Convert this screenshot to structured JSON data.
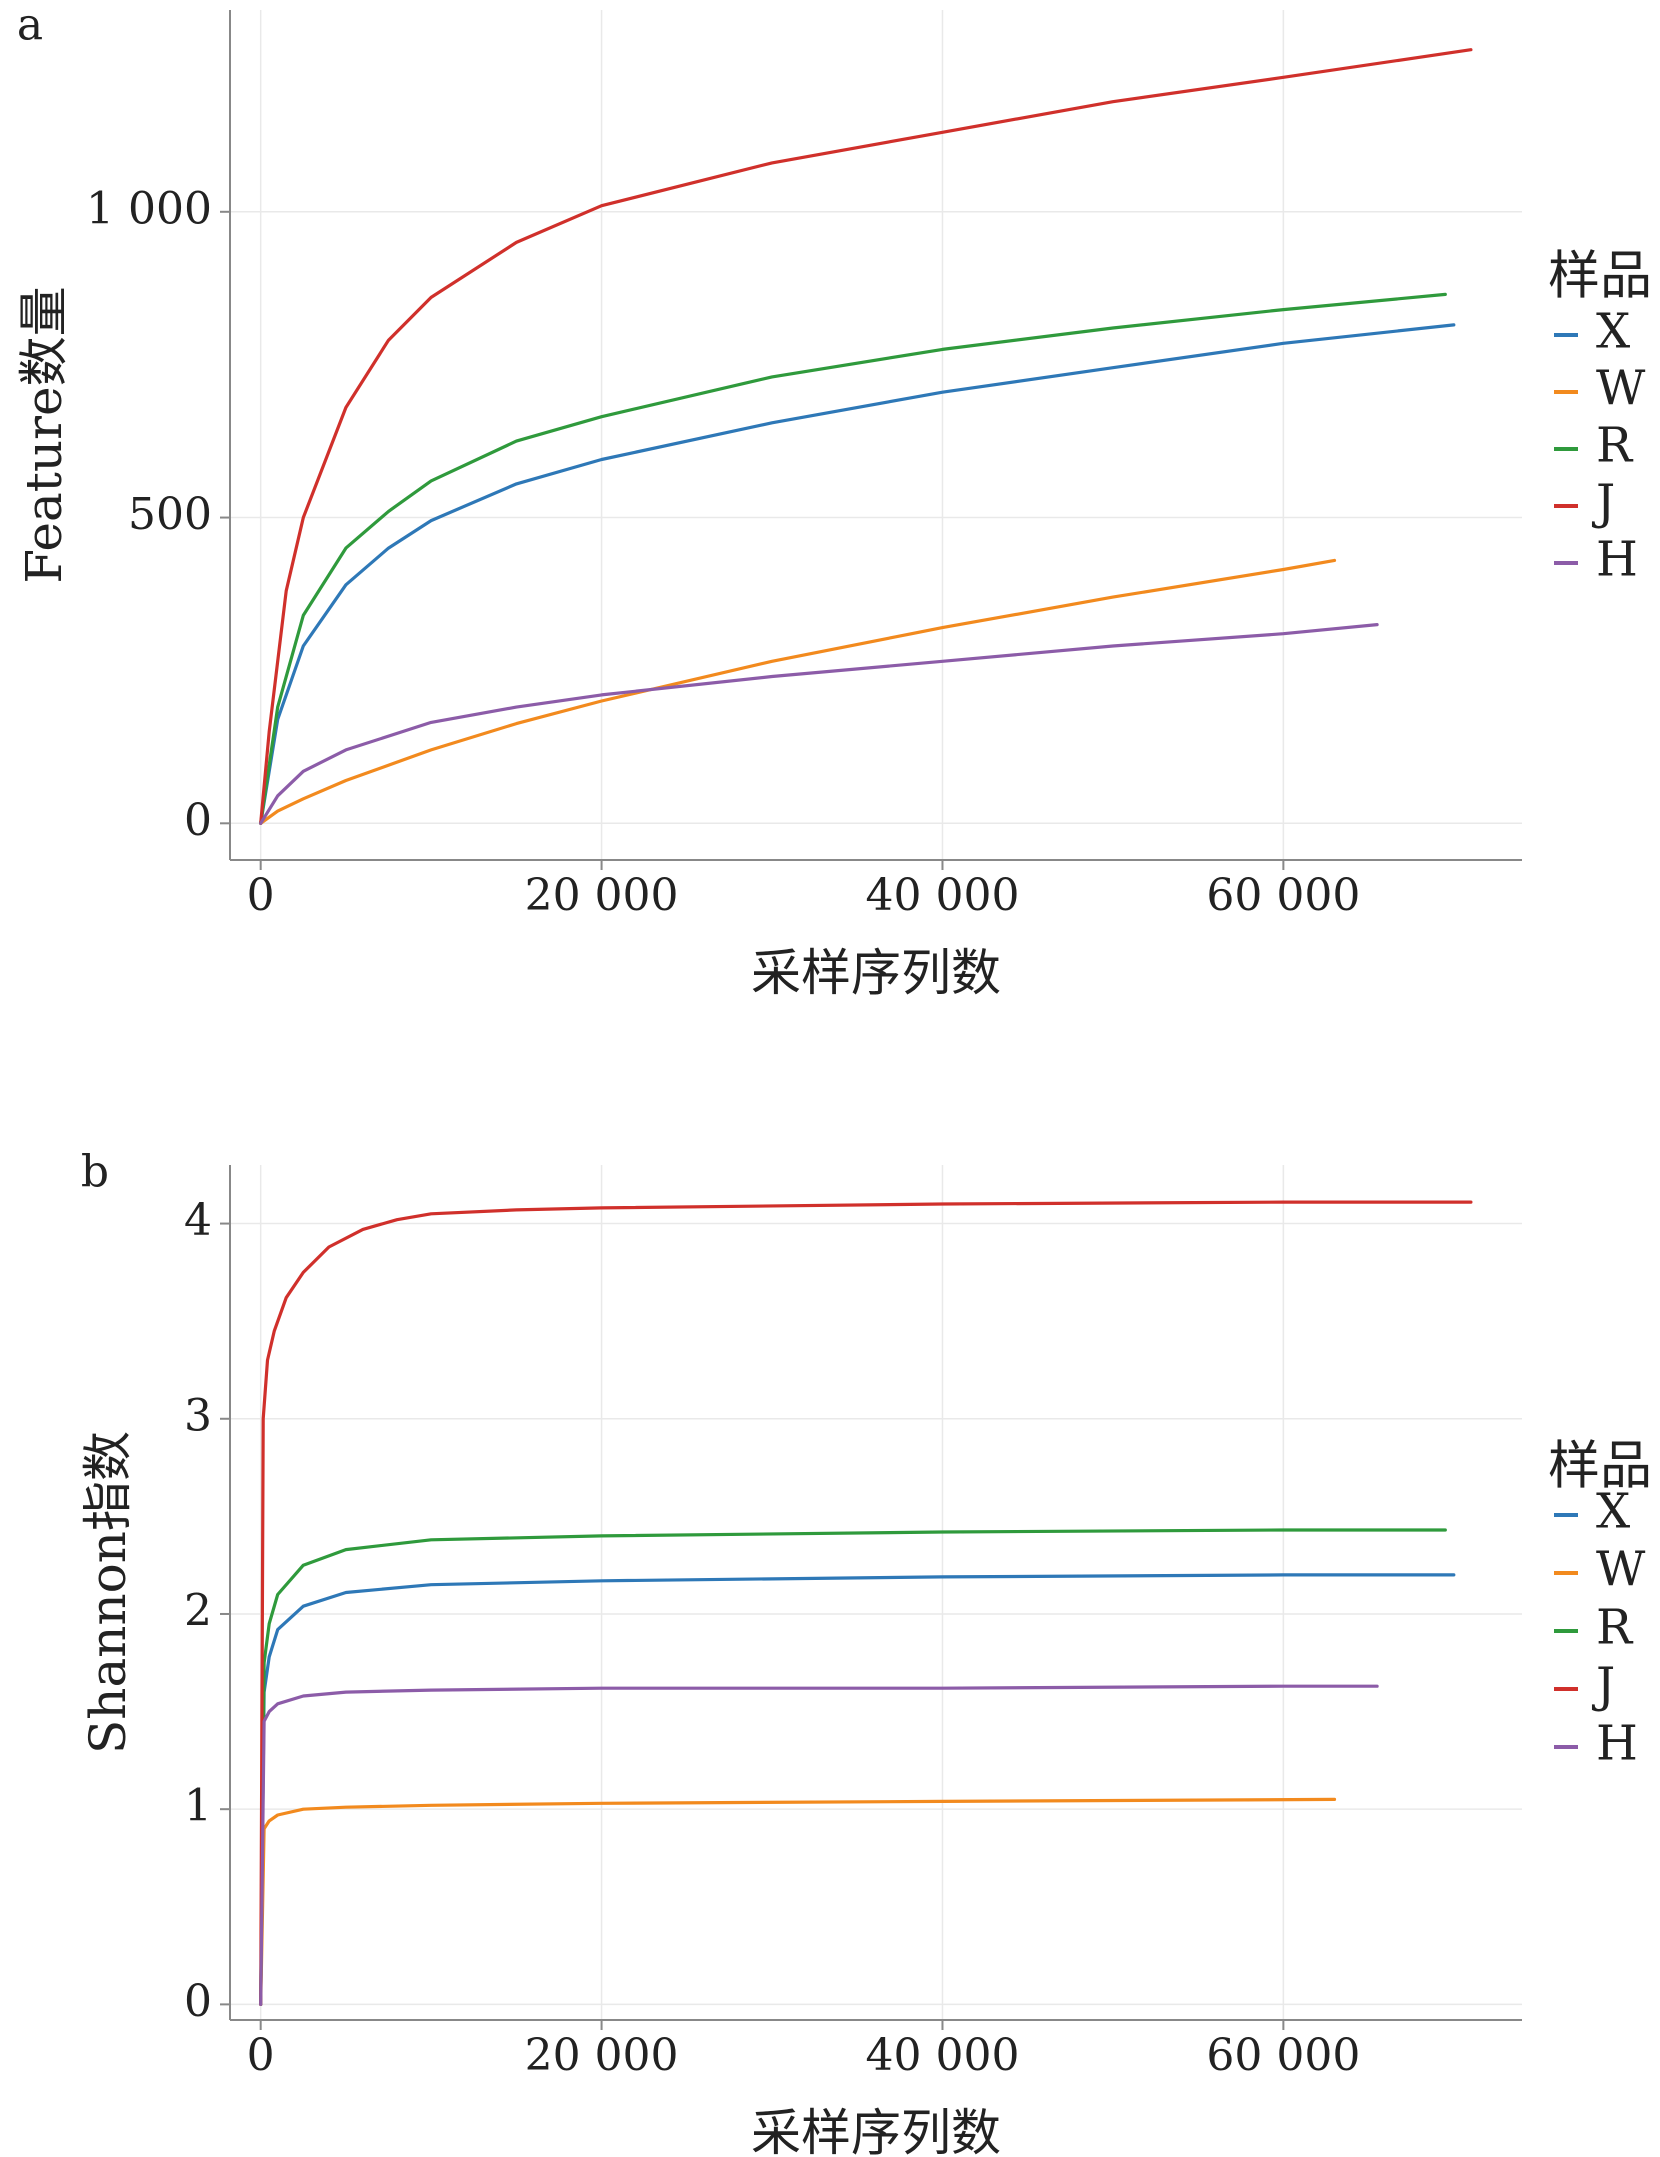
{
  "chart_data": [
    {
      "type": "line",
      "panel_label": "a",
      "xlabel": "采样序列数",
      "ylabel": "Feature数量",
      "xlim": [
        -1800,
        74000
      ],
      "ylim": [
        -60,
        1330
      ],
      "xticks": [
        0,
        20000,
        40000,
        60000
      ],
      "xtick_labels": [
        "0",
        "20 000",
        "40 000",
        "60 000"
      ],
      "yticks": [
        0,
        500,
        1000
      ],
      "ytick_labels": [
        "0",
        "500",
        "1 000"
      ],
      "grid": true,
      "legend": {
        "title": "样品",
        "position": "right"
      },
      "series": [
        {
          "name": "X",
          "color": "#2e78b7",
          "x": [
            0,
            1000,
            2500,
            5000,
            7500,
            10000,
            15000,
            20000,
            30000,
            40000,
            50000,
            60000,
            70000
          ],
          "y": [
            0,
            170,
            290,
            390,
            450,
            495,
            555,
            595,
            655,
            705,
            745,
            785,
            815
          ]
        },
        {
          "name": "W",
          "color": "#f28a1e",
          "x": [
            0,
            1000,
            2500,
            5000,
            10000,
            15000,
            20000,
            30000,
            40000,
            50000,
            60000,
            63000
          ],
          "y": [
            0,
            20,
            40,
            70,
            120,
            163,
            200,
            265,
            320,
            370,
            415,
            430
          ]
        },
        {
          "name": "R",
          "color": "#2f9a3c",
          "x": [
            0,
            1000,
            2500,
            5000,
            7500,
            10000,
            15000,
            20000,
            30000,
            40000,
            50000,
            60000,
            69500
          ],
          "y": [
            0,
            190,
            340,
            450,
            510,
            560,
            625,
            665,
            730,
            775,
            810,
            840,
            865
          ]
        },
        {
          "name": "J",
          "color": "#d0302b",
          "x": [
            0,
            500,
            1500,
            2500,
            5000,
            7500,
            10000,
            15000,
            20000,
            30000,
            40000,
            50000,
            60000,
            71000
          ],
          "y": [
            0,
            150,
            380,
            500,
            680,
            790,
            860,
            950,
            1010,
            1080,
            1130,
            1180,
            1220,
            1265
          ]
        },
        {
          "name": "H",
          "color": "#8c5ca8",
          "x": [
            0,
            1000,
            2500,
            5000,
            10000,
            15000,
            20000,
            30000,
            40000,
            50000,
            60000,
            65500
          ],
          "y": [
            0,
            45,
            85,
            120,
            165,
            190,
            210,
            240,
            265,
            290,
            310,
            325
          ]
        }
      ]
    },
    {
      "type": "line",
      "panel_label": "b",
      "xlabel": "采样序列数",
      "ylabel": "Shannon指数",
      "xlim": [
        -1800,
        74000
      ],
      "ylim": [
        -0.08,
        4.3
      ],
      "xticks": [
        0,
        20000,
        40000,
        60000
      ],
      "xtick_labels": [
        "0",
        "20 000",
        "40 000",
        "60 000"
      ],
      "yticks": [
        0,
        1,
        2,
        3,
        4
      ],
      "ytick_labels": [
        "0",
        "1",
        "2",
        "3",
        "4"
      ],
      "grid": true,
      "legend": {
        "title": "样品",
        "position": "right"
      },
      "series": [
        {
          "name": "X",
          "color": "#2e78b7",
          "x": [
            0,
            200,
            500,
            1000,
            2500,
            5000,
            10000,
            20000,
            40000,
            60000,
            70000
          ],
          "y": [
            0,
            1.6,
            1.78,
            1.92,
            2.04,
            2.11,
            2.15,
            2.17,
            2.19,
            2.2,
            2.2
          ]
        },
        {
          "name": "W",
          "color": "#f28a1e",
          "x": [
            0,
            200,
            500,
            1000,
            2500,
            5000,
            10000,
            20000,
            40000,
            63000
          ],
          "y": [
            0,
            0.9,
            0.94,
            0.97,
            1.0,
            1.01,
            1.02,
            1.03,
            1.04,
            1.05
          ]
        },
        {
          "name": "R",
          "color": "#2f9a3c",
          "x": [
            0,
            200,
            500,
            1000,
            2500,
            5000,
            10000,
            20000,
            40000,
            60000,
            69500
          ],
          "y": [
            0,
            1.75,
            1.95,
            2.1,
            2.25,
            2.33,
            2.38,
            2.4,
            2.42,
            2.43,
            2.43
          ]
        },
        {
          "name": "J",
          "color": "#d0302b",
          "x": [
            0,
            150,
            400,
            800,
            1500,
            2500,
            4000,
            6000,
            8000,
            10000,
            15000,
            20000,
            40000,
            60000,
            71000
          ],
          "y": [
            0,
            3.0,
            3.3,
            3.45,
            3.62,
            3.75,
            3.88,
            3.97,
            4.02,
            4.05,
            4.07,
            4.08,
            4.1,
            4.11,
            4.11
          ]
        },
        {
          "name": "H",
          "color": "#8c5ca8",
          "x": [
            0,
            200,
            500,
            1000,
            2500,
            5000,
            10000,
            20000,
            40000,
            60000,
            65500
          ],
          "y": [
            0,
            1.45,
            1.5,
            1.54,
            1.58,
            1.6,
            1.61,
            1.62,
            1.62,
            1.63,
            1.63
          ]
        }
      ]
    }
  ]
}
